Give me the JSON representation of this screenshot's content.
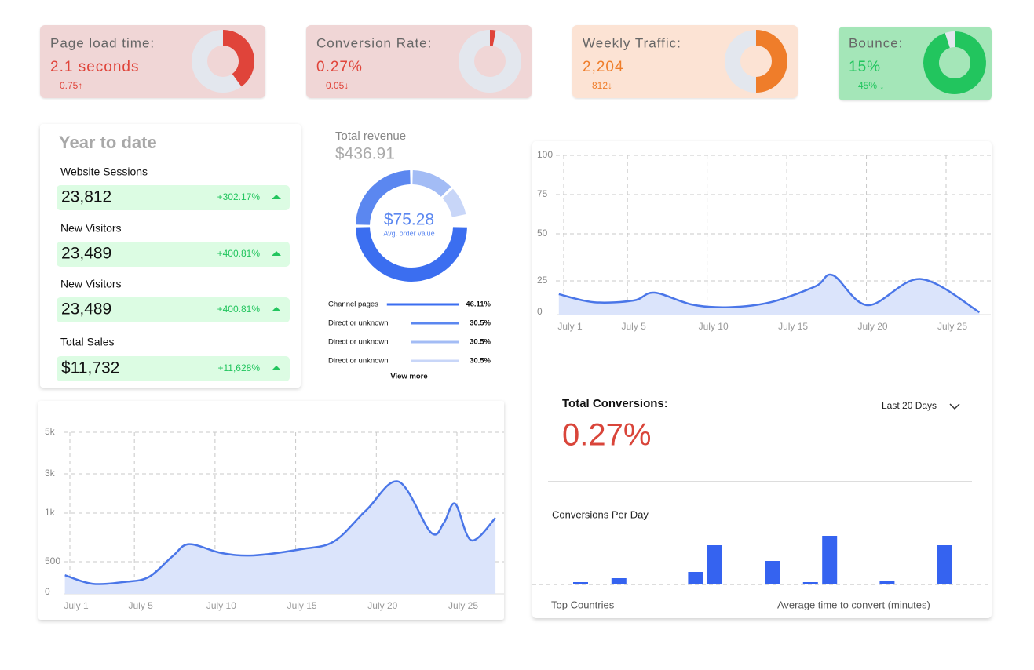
{
  "kpis": [
    {
      "label": "Page load time:",
      "value": "2.1 seconds",
      "change": "0.75↑",
      "gauge": 40,
      "color": "#e0443a",
      "bg": "#f0d6d6"
    },
    {
      "label": "Conversion Rate:",
      "value": "0.27%",
      "change": "0.05↓",
      "gauge": 3,
      "color": "#e0443a",
      "bg": "#f0d6d6"
    },
    {
      "label": "Weekly Traffic:",
      "value": "2,204",
      "change": "812↓",
      "gauge": 50,
      "color": "#ef7d2a",
      "bg": "#fce3d4"
    },
    {
      "label": "Bounce:",
      "value": "15%",
      "change": "45% ↓",
      "gauge": 95,
      "color": "#22c55e",
      "bg": "#a4e6b8"
    }
  ],
  "year_to_date": {
    "title": "Year to date",
    "rows": [
      {
        "label": "Website Sessions",
        "value": "23,812",
        "change": "+302.17%"
      },
      {
        "label": "New Visitors",
        "value": "23,489",
        "change": "+400.81%"
      },
      {
        "label": "New Visitors",
        "value": "23,489",
        "change": "+400.81%"
      },
      {
        "label": "Total Sales",
        "value": "$11,732",
        "change": "+11,628%"
      }
    ]
  },
  "conversions": {
    "title": "Total Conversions:",
    "value": "0.27%",
    "period": "Last 20 Days",
    "footer_left": "Top Countries",
    "footer_right": "Average time to convert (minutes)"
  },
  "chart_data": [
    {
      "type": "donut",
      "title": "Total revenue",
      "subtitle": "$436.91",
      "center_value": "$75.28",
      "center_label": "Avg. order value",
      "categories": [
        "Channel pages",
        "Direct or unknown",
        "Direct or unknown",
        "Direct or unknown"
      ],
      "values": [
        46.11,
        30.5,
        30.5,
        30.5
      ],
      "value_labels": [
        "46.11%",
        "30.5%",
        "30.5%",
        "30.5%"
      ],
      "ring_values": [
        50,
        25,
        13,
        9
      ],
      "colors": [
        "#3b6ef0",
        "#5b87f0",
        "#a3bcf5",
        "#c8d6f8"
      ],
      "link": "View more"
    },
    {
      "type": "area",
      "x": [
        0.3,
        2,
        4,
        5.5,
        7,
        8,
        10,
        12,
        15,
        17,
        19,
        21,
        23,
        23.8,
        24.5,
        25.5,
        27
      ],
      "values": [
        280,
        140,
        170,
        250,
        560,
        680,
        590,
        565,
        630,
        710,
        1160,
        2600,
        800,
        900,
        1480,
        720,
        950
      ],
      "xlim": [
        0.3,
        27
      ],
      "xticks": [
        {
          "value": 1,
          "label": "July 1"
        },
        {
          "value": 5,
          "label": "July 5"
        },
        {
          "value": 10,
          "label": "July 10"
        },
        {
          "value": 15,
          "label": "July 15"
        },
        {
          "value": 20,
          "label": "July 20"
        },
        {
          "value": 25,
          "label": "July 25"
        }
      ],
      "ylim": [
        0,
        5000
      ],
      "yticks": [
        0,
        500,
        {
          "value": 1000,
          "label": "1k"
        },
        {
          "value": 3000,
          "label": "3k"
        },
        {
          "value": 5000,
          "label": "5k"
        }
      ],
      "color": "#4a76e8",
      "grid": true
    },
    {
      "type": "area",
      "x": [
        0.3,
        2.5,
        5,
        6.3,
        8.7,
        11,
        13.6,
        16.4,
        17.5,
        19.7,
        23,
        26.7
      ],
      "values": [
        14.4,
        8,
        9.4,
        15.6,
        6,
        4,
        8,
        20.6,
        28,
        5.6,
        26,
        0
      ],
      "xlim": [
        0.3,
        26.7
      ],
      "xticks": [
        {
          "value": 1,
          "label": "July 1"
        },
        {
          "value": 5,
          "label": "July 5"
        },
        {
          "value": 10,
          "label": "July 10"
        },
        {
          "value": 15,
          "label": "July 15"
        },
        {
          "value": 20,
          "label": "July 20"
        },
        {
          "value": 25,
          "label": "July 25"
        }
      ],
      "ylim": [
        0,
        100
      ],
      "yticks": [
        0,
        25,
        50,
        75,
        100
      ],
      "color": "#4a76e8",
      "grid": true
    },
    {
      "type": "bar",
      "title": "Conversions Per Day",
      "values": [
        3,
        0,
        8,
        0,
        0,
        0,
        16,
        50,
        0,
        1,
        30,
        0,
        3,
        62,
        1,
        0,
        5,
        0,
        1,
        50
      ],
      "color": "#3563f0"
    }
  ]
}
